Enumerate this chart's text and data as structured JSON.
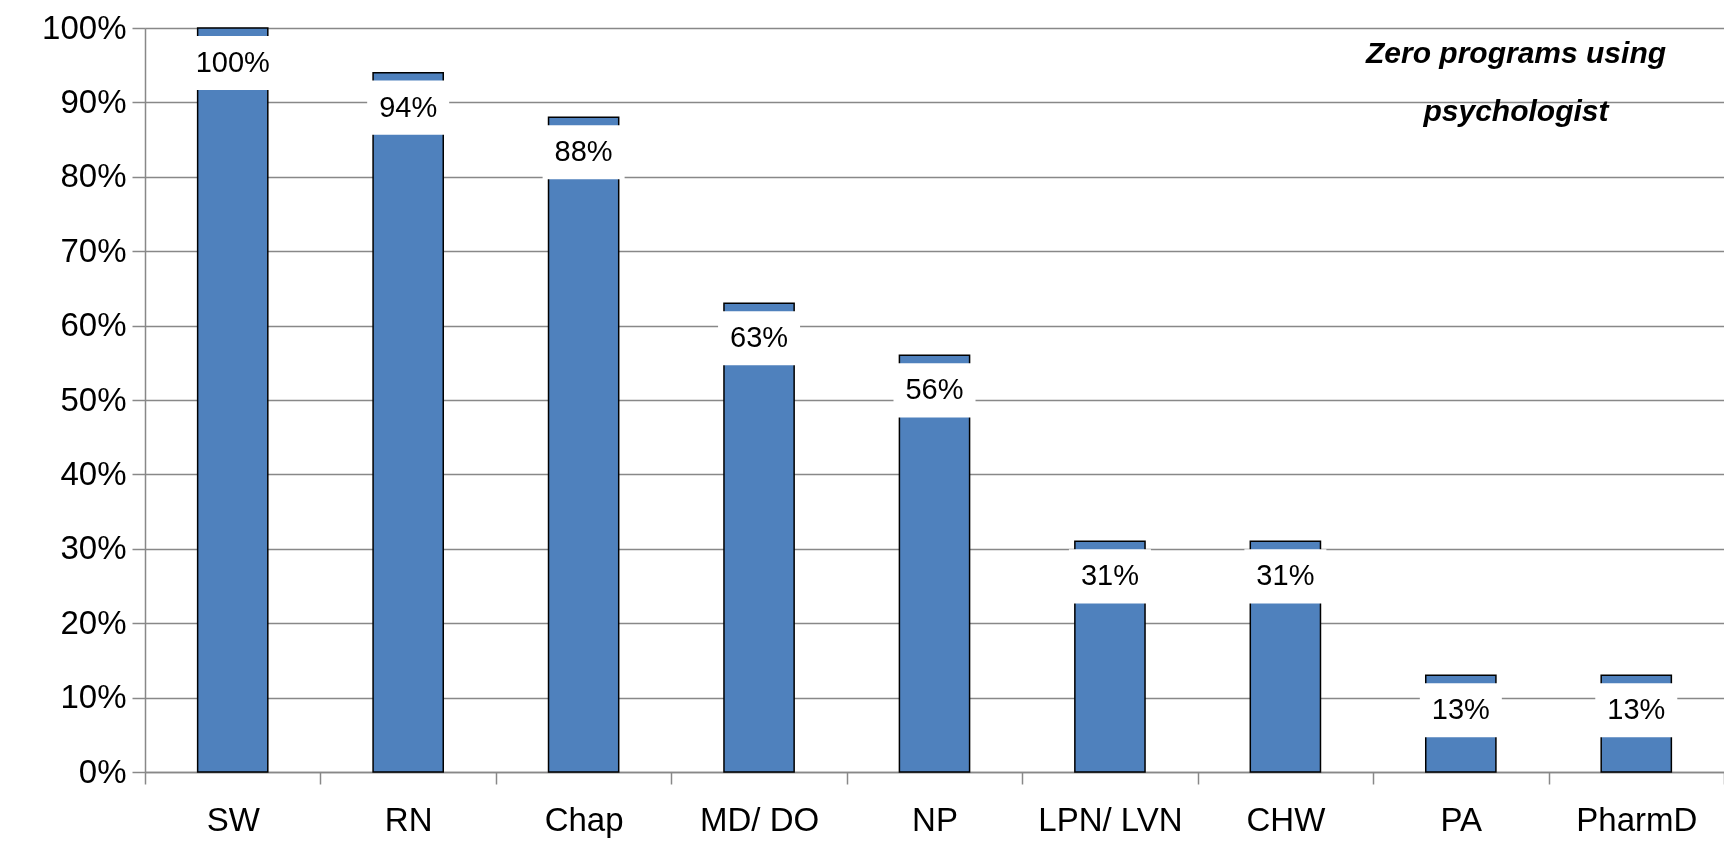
{
  "chart_data": {
    "type": "bar",
    "categories": [
      "SW",
      "RN",
      "Chap",
      "MD/ DO",
      "NP",
      "LPN/ LVN",
      "CHW",
      "PA",
      "PharmD"
    ],
    "values": [
      100,
      94,
      88,
      63,
      56,
      31,
      31,
      13,
      13
    ],
    "color": "#4f81bd",
    "value_labels": [
      "100%",
      "94%",
      "88%",
      "63%",
      "56%",
      "31%",
      "31%",
      "13%",
      "13%"
    ],
    "ylim": [
      0,
      100
    ],
    "yticks": [
      {
        "value": 0,
        "label": "0%"
      },
      {
        "value": 10,
        "label": "10%"
      },
      {
        "value": 20,
        "label": "20%"
      },
      {
        "value": 30,
        "label": "30%"
      },
      {
        "value": 40,
        "label": "40%"
      },
      {
        "value": 50,
        "label": "50%"
      },
      {
        "value": 60,
        "label": "60%"
      },
      {
        "value": 70,
        "label": "70%"
      },
      {
        "value": 80,
        "label": "80%"
      },
      {
        "value": 90,
        "label": "90%"
      },
      {
        "value": 100,
        "label": "100%"
      }
    ],
    "grid": "y",
    "annotations": [
      "Zero programs using psychologist"
    ]
  }
}
